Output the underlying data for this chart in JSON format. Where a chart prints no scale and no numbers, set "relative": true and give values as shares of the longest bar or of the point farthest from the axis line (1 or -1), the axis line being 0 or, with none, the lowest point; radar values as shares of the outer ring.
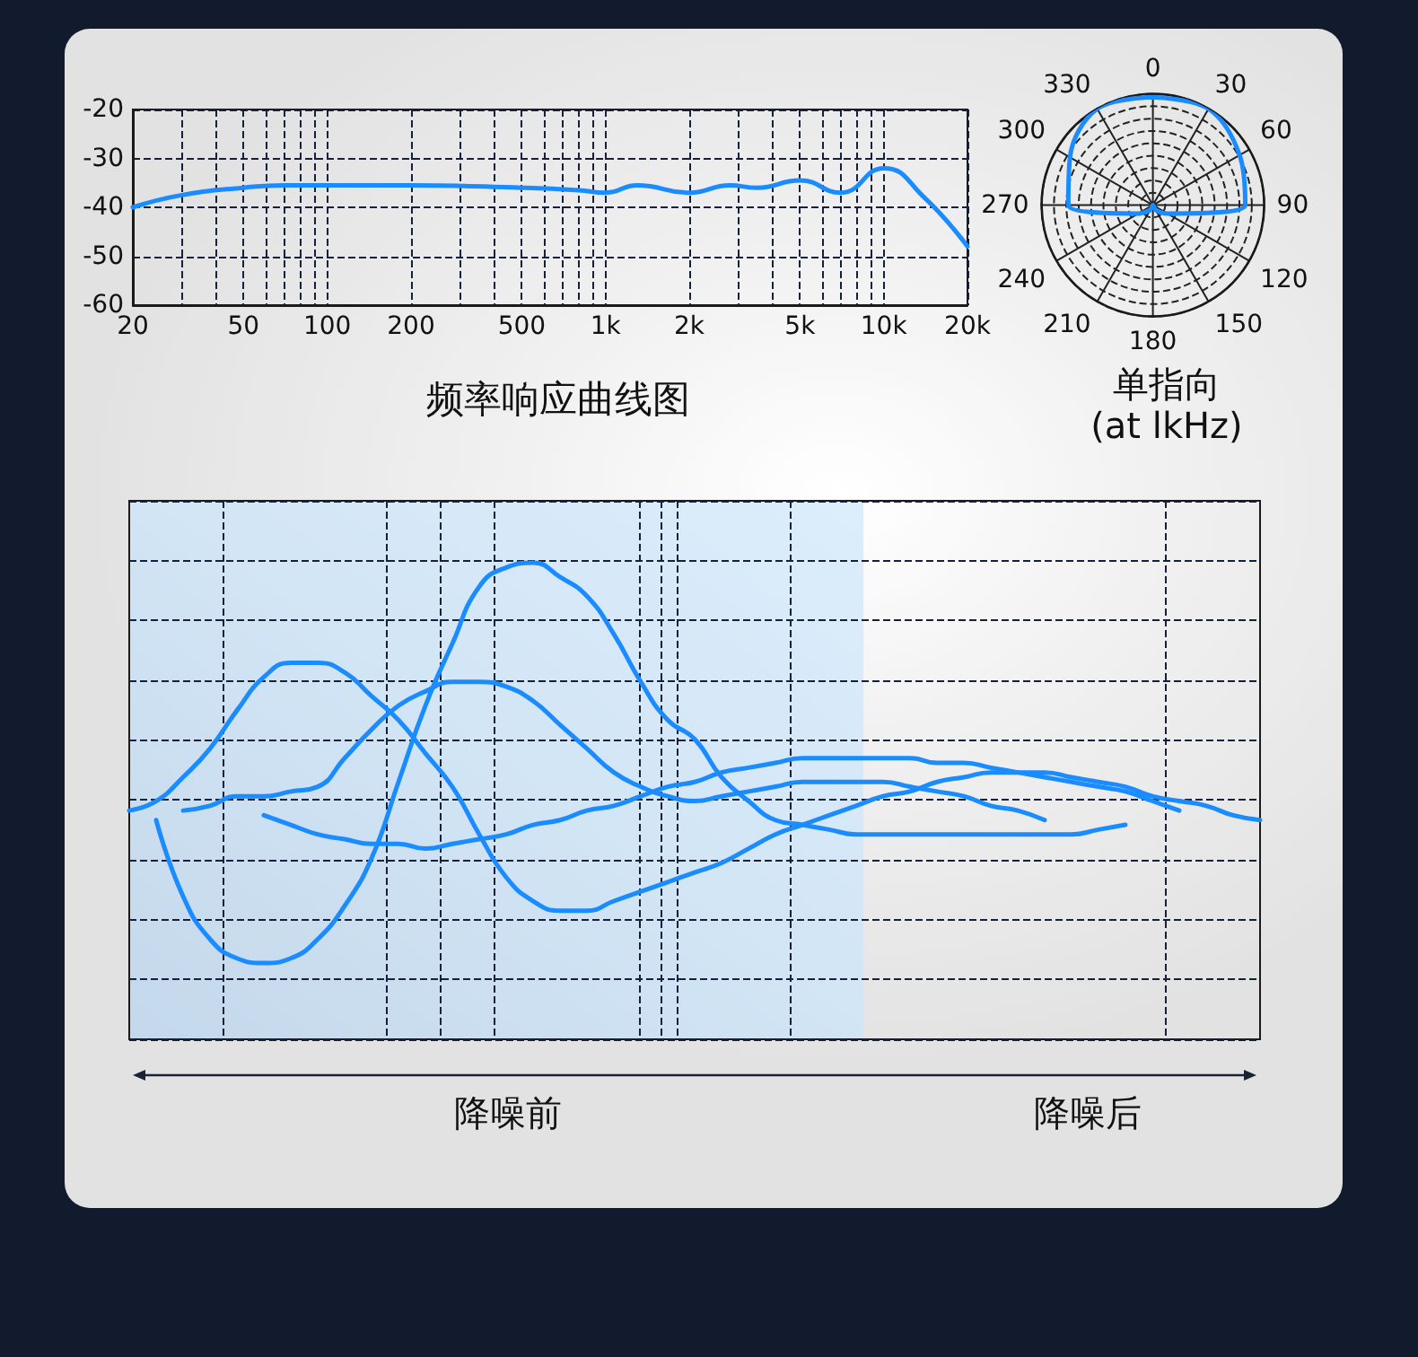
{
  "chart_data": [
    {
      "type": "line",
      "title": "频率响应曲线图",
      "x": [
        20,
        30,
        50,
        70,
        200,
        500,
        800,
        1000,
        1300,
        2000,
        2800,
        3500,
        5000,
        7000,
        10000,
        14000,
        20000
      ],
      "values": [
        -40,
        -37.5,
        -36,
        -35.5,
        -35.5,
        -36,
        -36.5,
        -37,
        -35.5,
        -37,
        -35.5,
        -36,
        -34.5,
        -37,
        -32,
        -38,
        -48
      ],
      "color": "#1a8cff",
      "log": "x",
      "xlim": [
        20,
        20000
      ],
      "xticks": [
        20,
        {
          "value": 30,
          "label": null
        },
        {
          "value": 40,
          "label": null
        },
        50,
        {
          "value": 60,
          "label": null
        },
        {
          "value": 70,
          "label": null
        },
        {
          "value": 80,
          "label": null
        },
        {
          "value": 90,
          "label": null
        },
        100,
        200,
        {
          "value": 300,
          "label": null
        },
        {
          "value": 400,
          "label": null
        },
        500,
        {
          "value": 600,
          "label": null
        },
        {
          "value": 700,
          "label": null
        },
        {
          "value": 800,
          "label": null
        },
        {
          "value": 900,
          "label": null
        },
        {
          "value": 1000,
          "label": "1k"
        },
        {
          "value": 2000,
          "label": "2k"
        },
        {
          "value": 3000,
          "label": null
        },
        {
          "value": 4000,
          "label": null
        },
        {
          "value": 5000,
          "label": "5k"
        },
        {
          "value": 6000,
          "label": null
        },
        {
          "value": 7000,
          "label": null
        },
        {
          "value": 8000,
          "label": null
        },
        {
          "value": 9000,
          "label": null
        },
        {
          "value": 10000,
          "label": "10k"
        },
        {
          "value": 20000,
          "label": "20k"
        }
      ],
      "ylim": [
        -60,
        -20
      ],
      "yticks": [
        -60,
        -50,
        -40,
        -30,
        -20
      ],
      "grid": true
    },
    {
      "type": "radar",
      "title": "单指向",
      "subtitle": "(at lkHz)",
      "categories": [
        "0",
        "30",
        "60",
        "90",
        "120",
        "150",
        "180",
        "210",
        "240",
        "270",
        "300",
        "330"
      ],
      "relative": true,
      "series": [
        {
          "color": "#1a8cff",
          "values": [
            0.97,
            1,
            0.9,
            0.83,
            0.15,
            0.05,
            0,
            0.05,
            0.15,
            0.76,
            0.86,
            1
          ]
        }
      ],
      "grid": true
    },
    {
      "type": "line",
      "relative": true,
      "categories": [
        null,
        null,
        null,
        null,
        null,
        null,
        null,
        null,
        null,
        null,
        null,
        null,
        null,
        null,
        null,
        null,
        null,
        null,
        null,
        null,
        null,
        null,
        null,
        null,
        null,
        null,
        null,
        null,
        null,
        null,
        null,
        null,
        null,
        null,
        null,
        null,
        null,
        null,
        null,
        null,
        null,
        null,
        null
      ],
      "series": [
        {
          "color": "#1a8cff",
          "values": [
            null,
            0.46,
            0.3,
            0.21,
            0.17,
            0.16,
            0.17,
            0.21,
            0.28,
            0.38,
            0.54,
            0.7,
            0.83,
            0.95,
            0.99,
            1,
            0.97,
            0.93,
            0.85,
            0.75,
            0.67,
            0.63,
            0.55,
            0.5,
            0.46,
            0.45,
            0.44,
            0.43,
            0.43,
            0.43,
            0.43,
            0.43,
            0.43,
            0.43,
            0.43,
            0.43,
            0.44,
            0.45,
            null,
            null,
            null,
            null,
            null
          ]
        },
        {
          "color": "#1a8cff",
          "values": [
            0.48,
            0.5,
            0.55,
            0.61,
            0.69,
            0.76,
            0.79,
            0.79,
            0.77,
            0.72,
            0.67,
            0.6,
            0.53,
            0.43,
            0.34,
            0.29,
            0.27,
            0.27,
            0.29,
            0.31,
            0.33,
            0.35,
            0.37,
            0.4,
            0.43,
            0.45,
            0.47,
            0.49,
            0.51,
            0.52,
            0.54,
            0.55,
            0.56,
            0.56,
            0.56,
            0.55,
            0.54,
            0.53,
            0.51,
            0.5,
            0.49,
            0.47,
            0.46
          ]
        },
        {
          "color": "#1a8cff",
          "values": [
            null,
            null,
            0.48,
            0.49,
            0.51,
            0.51,
            0.52,
            0.53,
            0.59,
            0.65,
            0.7,
            0.73,
            0.75,
            0.75,
            0.74,
            0.71,
            0.66,
            0.61,
            0.56,
            0.53,
            0.51,
            0.5,
            0.51,
            0.52,
            0.53,
            0.54,
            0.54,
            0.54,
            0.54,
            0.53,
            0.52,
            0.51,
            0.49,
            0.48,
            0.46,
            null,
            null,
            null,
            null,
            null,
            null,
            null,
            null
          ]
        },
        {
          "color": "#1a8cff",
          "values": [
            null,
            null,
            null,
            null,
            null,
            0.47,
            0.45,
            0.43,
            0.42,
            0.41,
            0.41,
            0.4,
            0.41,
            0.42,
            0.43,
            0.45,
            0.46,
            0.48,
            0.49,
            0.51,
            0.53,
            0.54,
            0.56,
            0.57,
            0.58,
            0.59,
            0.59,
            0.59,
            0.59,
            0.59,
            0.58,
            0.58,
            0.57,
            0.56,
            0.55,
            0.54,
            0.53,
            0.52,
            0.5,
            0.48,
            null,
            null,
            null
          ]
        }
      ],
      "annotations": [
        "降噪前",
        "降噪后"
      ],
      "grid": true
    }
  ]
}
